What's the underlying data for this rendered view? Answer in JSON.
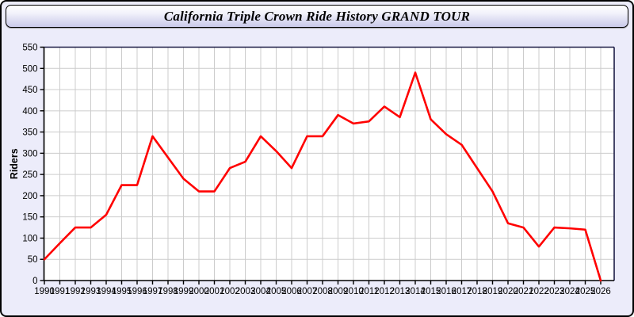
{
  "window": {
    "title": "California Triple Crown Ride History GRAND TOUR"
  },
  "colors": {
    "page_bg": "#ECECFA",
    "titlebar_top": "#FFFFFF",
    "titlebar_bottom": "#C9C9EA",
    "titlebar_border": "#000000",
    "plot_bg": "#FFFFFF",
    "grid": "#CCCCCC",
    "frame": "#1B1B45",
    "axis": "#000000",
    "line": "#FF0000",
    "tick_text": "#000000"
  },
  "chart_data": {
    "type": "line",
    "title": "California Triple Crown Ride History GRAND TOUR",
    "xlabel": "",
    "ylabel": "Riders",
    "x": [
      1990,
      1991,
      1992,
      1993,
      1994,
      1995,
      1996,
      1997,
      1998,
      1999,
      2000,
      2001,
      2002,
      2003,
      2004,
      2005,
      2006,
      2007,
      2008,
      2009,
      2010,
      2011,
      2012,
      2013,
      2014,
      2015,
      2016,
      2017,
      2018,
      2019,
      2020,
      2021,
      2022,
      2023,
      2024,
      2025,
      2026
    ],
    "series": [
      {
        "name": "Riders",
        "color": "#FF0000",
        "values": [
          50,
          88,
          125,
          125,
          155,
          225,
          225,
          340,
          290,
          240,
          210,
          210,
          265,
          280,
          340,
          305,
          265,
          340,
          340,
          390,
          370,
          375,
          410,
          385,
          490,
          380,
          345,
          320,
          265,
          210,
          135,
          125,
          80,
          125,
          123,
          120,
          0
        ]
      }
    ],
    "ylim": [
      0,
      550
    ],
    "ytick_step": 50,
    "grid": true,
    "legend": "none"
  }
}
